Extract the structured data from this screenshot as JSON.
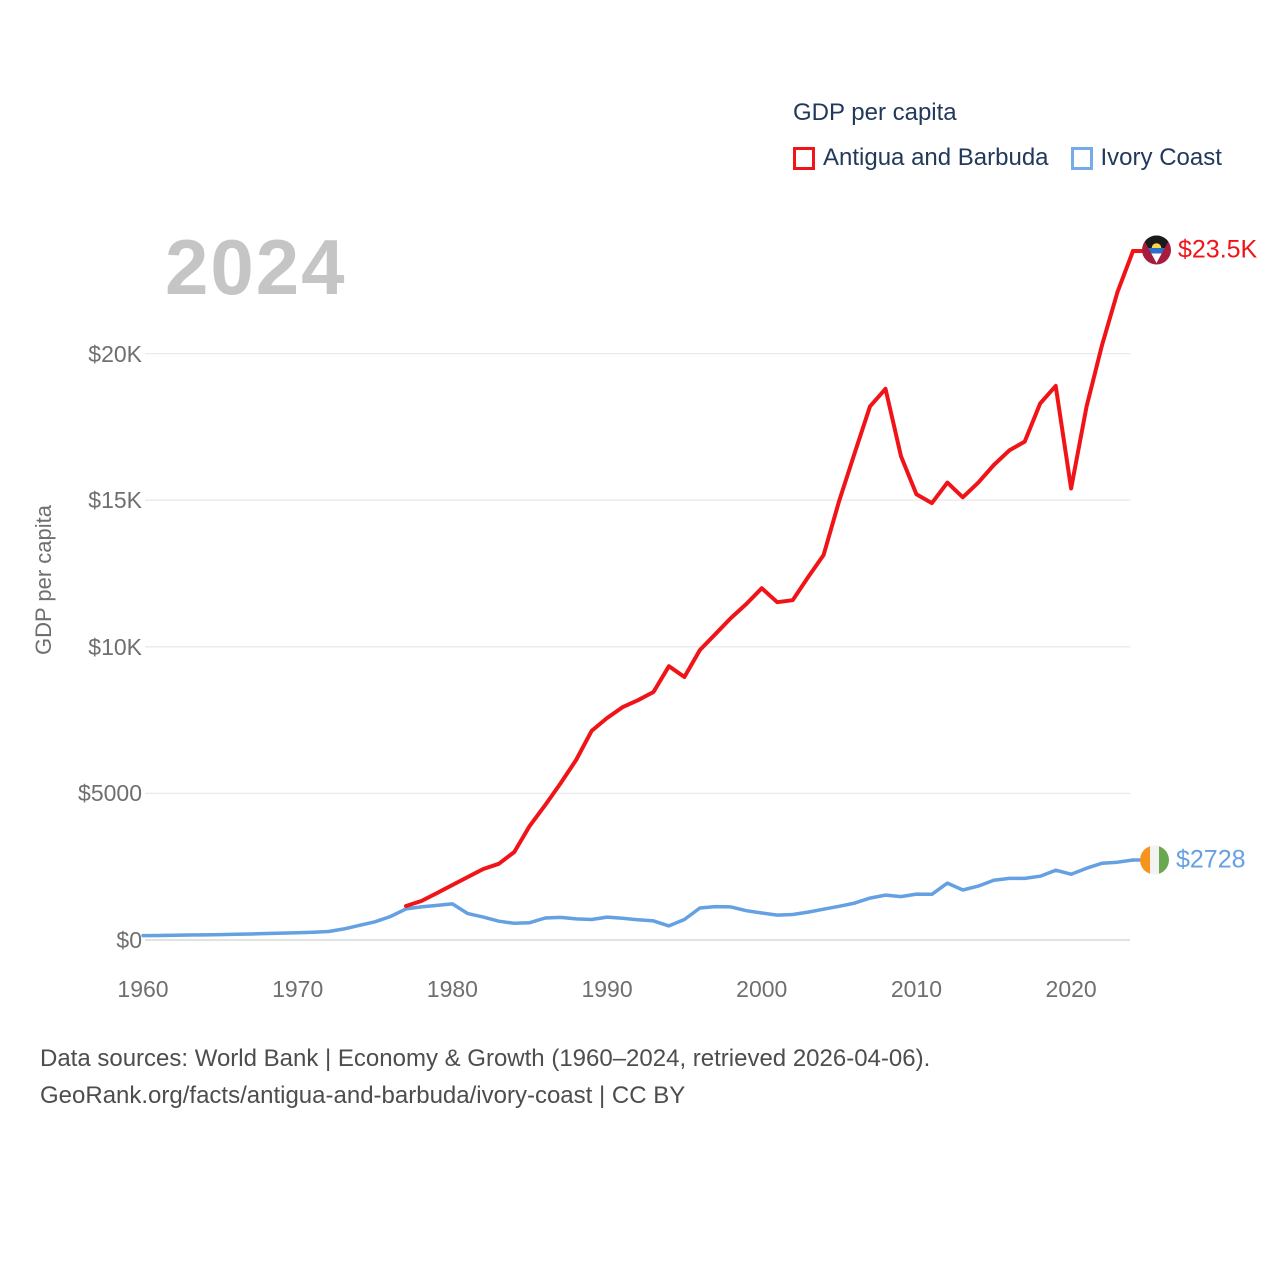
{
  "watermark": "2024",
  "colors": {
    "antigua_red": "#f01418",
    "ivory_blue": "#65a0e2",
    "legend_red_box": "#f01418",
    "legend_blue_box": "#74abe8",
    "legend_text": "#22395c",
    "axis_text": "#6f6f6f",
    "grid": "#eaeaea",
    "zero_line": "#d8d8d8",
    "watermark": "#c5c5c5",
    "footer_text": "#4d4d4d"
  },
  "chart_data": {
    "type": "line",
    "title": "GDP per capita",
    "ylabel": "GDP per capita",
    "xlabel": "",
    "grid": "horizontal",
    "legend_position": "top-right",
    "xlim": [
      1959,
      2026
    ],
    "ylim": [
      0,
      24000
    ],
    "xticks": [
      {
        "value": 1960,
        "label": "1960"
      },
      {
        "value": 1970,
        "label": "1970"
      },
      {
        "value": 1980,
        "label": "1980"
      },
      {
        "value": 1990,
        "label": "1990"
      },
      {
        "value": 2000,
        "label": "2000"
      },
      {
        "value": 2010,
        "label": "2010"
      },
      {
        "value": 2020,
        "label": "2020"
      }
    ],
    "yticks": [
      {
        "value": 0,
        "label": "$0"
      },
      {
        "value": 5000,
        "label": "$5000"
      },
      {
        "value": 10000,
        "label": "$10K"
      },
      {
        "value": 15000,
        "label": "$15K"
      },
      {
        "value": 20000,
        "label": "$20K"
      }
    ],
    "series": [
      {
        "name": "Antigua and Barbuda",
        "color": "#f01418",
        "x": [
          1977,
          1978,
          1979,
          1980,
          1981,
          1982,
          1983,
          1984,
          1985,
          1986,
          1987,
          1988,
          1989,
          1990,
          1991,
          1992,
          1993,
          1994,
          1995,
          1996,
          1997,
          1998,
          1999,
          2000,
          2001,
          2002,
          2003,
          2004,
          2005,
          2006,
          2007,
          2008,
          2009,
          2010,
          2011,
          2012,
          2013,
          2014,
          2015,
          2016,
          2017,
          2018,
          2019,
          2020,
          2021,
          2022,
          2023,
          2024
        ],
        "values": [
          1160,
          1330,
          1600,
          1875,
          2150,
          2420,
          2600,
          3000,
          3890,
          4600,
          5350,
          6140,
          7130,
          7570,
          7940,
          8180,
          8460,
          9340,
          8970,
          9890,
          10430,
          10980,
          11460,
          12000,
          11520,
          11590,
          12380,
          13130,
          14970,
          16600,
          18200,
          18800,
          16500,
          15200,
          14900,
          15600,
          15100,
          15600,
          16200,
          16700,
          17000,
          18300,
          18900,
          15400,
          18200,
          20300,
          22100,
          23500
        ]
      },
      {
        "name": "Ivory Coast",
        "color": "#65a0e2",
        "x": [
          1960,
          1961,
          1962,
          1963,
          1964,
          1965,
          1966,
          1967,
          1968,
          1969,
          1970,
          1971,
          1972,
          1973,
          1974,
          1975,
          1976,
          1977,
          1978,
          1979,
          1980,
          1981,
          1982,
          1983,
          1984,
          1985,
          1986,
          1987,
          1988,
          1989,
          1990,
          1991,
          1992,
          1993,
          1994,
          1995,
          1996,
          1997,
          1998,
          1999,
          2000,
          2001,
          2002,
          2003,
          2004,
          2005,
          2006,
          2007,
          2008,
          2009,
          2010,
          2011,
          2012,
          2013,
          2014,
          2015,
          2016,
          2017,
          2018,
          2019,
          2020,
          2021,
          2022,
          2023,
          2024
        ],
        "values": [
          150,
          155,
          160,
          170,
          175,
          185,
          195,
          205,
          220,
          235,
          250,
          265,
          290,
          380,
          500,
          620,
          800,
          1060,
          1130,
          1180,
          1230,
          900,
          780,
          640,
          570,
          590,
          750,
          770,
          720,
          700,
          780,
          740,
          690,
          650,
          480,
          700,
          1090,
          1140,
          1130,
          1000,
          920,
          850,
          870,
          950,
          1050,
          1150,
          1260,
          1430,
          1530,
          1480,
          1565,
          1560,
          1940,
          1705,
          1840,
          2040,
          2100,
          2100,
          2175,
          2380,
          2245,
          2450,
          2620,
          2655,
          2728
        ]
      }
    ],
    "end_labels": [
      {
        "series": "Antigua and Barbuda",
        "text": "$23.5K"
      },
      {
        "series": "Ivory Coast",
        "text": "$2728"
      }
    ]
  },
  "footer": {
    "line1": "Data sources: World Bank | Economy & Growth (1960–2024, retrieved 2026-04-06).",
    "line2": "GeoRank.org/facts/antigua-and-barbuda/ivory-coast | CC BY"
  }
}
